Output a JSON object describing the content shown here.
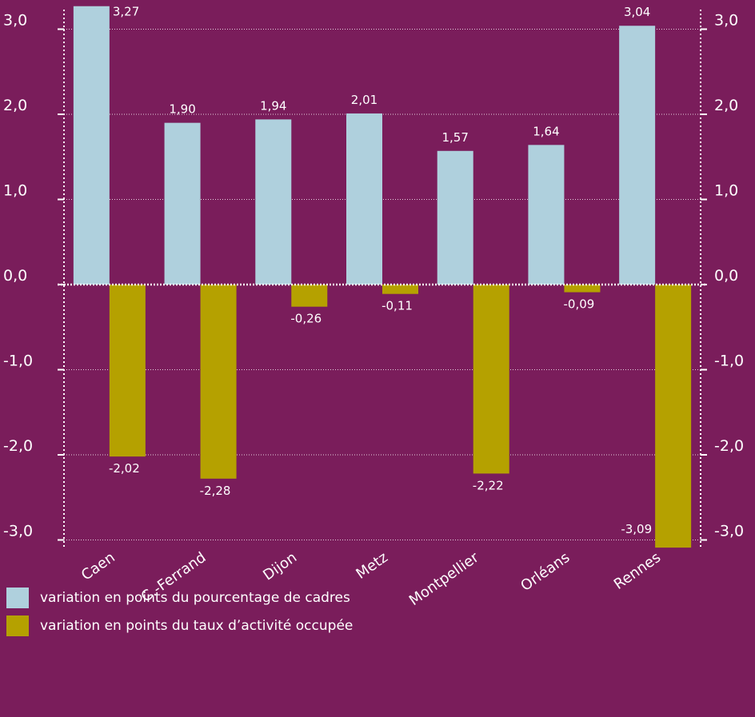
{
  "chart_data": {
    "type": "bar",
    "categories": [
      "Caen",
      "C.-Ferrand",
      "Dijon",
      "Metz",
      "Montpellier",
      "Orléans",
      "Rennes"
    ],
    "series": [
      {
        "name": "variation en points du pourcentage de cadres",
        "values": [
          3.27,
          1.9,
          1.94,
          2.01,
          1.57,
          1.64,
          3.04
        ],
        "labels": [
          "3,27",
          "1,90",
          "1,94",
          "2,01",
          "1,57",
          "1,64",
          "3,04"
        ],
        "color": "#afd0dd"
      },
      {
        "name": "variation en points du taux d’activité occupée",
        "values": [
          -2.02,
          -2.28,
          -0.26,
          -0.11,
          -2.22,
          -0.09,
          -3.09
        ],
        "labels": [
          "-2,02",
          "-2,28",
          "-0,26",
          "-0,11",
          "-2,22",
          "-0,09",
          "-3,09"
        ],
        "color": "#b5a100"
      }
    ],
    "yticks": [
      3.0,
      2.0,
      1.0,
      0.0,
      -1.0,
      -2.0,
      -3.0
    ],
    "ytick_labels": [
      "3,0",
      "2,0",
      "1,0",
      "0,0",
      "-1,0",
      "-2,0",
      "-3,0"
    ],
    "ylim": [
      -3.0,
      3.0
    ],
    "grid": true,
    "dual_y_axis": true,
    "legend_position": "bottom-left",
    "colors": {
      "background": "#7a1d5b",
      "text": "#ffffff",
      "grid": "#ffffff"
    }
  }
}
